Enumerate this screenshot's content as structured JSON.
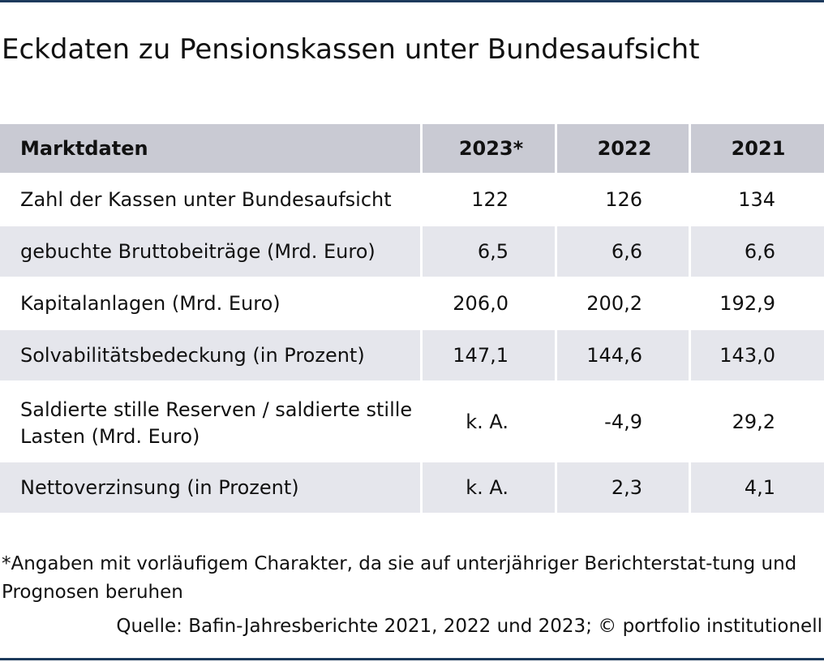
{
  "title": "Eckdaten zu Pensionskassen unter Bundesaufsicht",
  "table": {
    "header": [
      "Marktdaten",
      "2023*",
      "2022",
      "2021"
    ],
    "rows": [
      [
        "Zahl der Kassen unter Bundesaufsicht",
        "122",
        "126",
        "134"
      ],
      [
        "gebuchte Bruttobeiträge (Mrd. Euro)",
        "6,5",
        "6,6",
        "6,6"
      ],
      [
        "Kapitalanlagen (Mrd. Euro)",
        "206,0",
        "200,2",
        "192,9"
      ],
      [
        "Solvabilitätsbedeckung (in Prozent)",
        "147,1",
        "144,6",
        "143,0"
      ],
      [
        "Saldierte stille Reserven / saldierte stille Lasten (Mrd. Euro)",
        "k. A.",
        "-4,9",
        "29,2"
      ],
      [
        "Nettoverzinsung (in Prozent)",
        "k. A.",
        "2,3",
        "4,1"
      ]
    ]
  },
  "footnote": "*Angaben mit vorläufigem Charakter, da sie auf unterjähriger Berichterstat-tung und Prognosen beruhen",
  "source": "Quelle: Bafin-Jahresberichte 2021, 2022 und 2023; © portfolio institutionell",
  "colors": {
    "header_fill": "#c9cad3",
    "band_fill": "#e5e6ec",
    "rule": "#1d3a5c"
  }
}
